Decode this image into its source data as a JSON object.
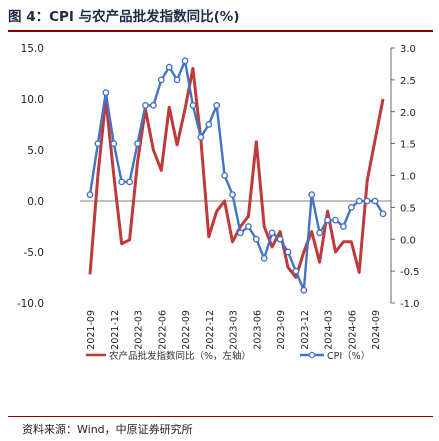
{
  "title": "图 4：CPI 与农产品批发指数同比(%)",
  "source": "资料来源：Wind，中原证券研究所",
  "colors": {
    "agri": "#c0393b",
    "cpi": "#4472c4",
    "accent": "#8b0000"
  },
  "chart_data": {
    "type": "line",
    "x_ticks": [
      "2021-09",
      "2021-12",
      "2022-03",
      "2022-06",
      "2022-09",
      "2022-12",
      "2023-03",
      "2023-06",
      "2023-09",
      "2023-12",
      "2024-03",
      "2024-06",
      "2024-09"
    ],
    "x_tick_index": [
      0,
      3,
      6,
      9,
      12,
      15,
      18,
      21,
      24,
      27,
      30,
      33,
      36
    ],
    "left_axis": {
      "ylim": [
        -10,
        15
      ],
      "ticks": [
        "15.0",
        "10.0",
        "5.0",
        "0.0",
        "-5.0",
        "-10.0"
      ],
      "tick_values": [
        15,
        10,
        5,
        0,
        -5,
        -10
      ]
    },
    "right_axis": {
      "ylim": [
        -1.0,
        3.0
      ],
      "ticks": [
        "3.0",
        "2.5",
        "2.0",
        "1.5",
        "1.0",
        "0.5",
        "0.0",
        "-0.5",
        "-1.0"
      ],
      "tick_values": [
        3,
        2.5,
        2,
        1.5,
        1,
        0.5,
        0,
        -0.5,
        -1
      ]
    },
    "series": [
      {
        "name": "农产品批发指数同比（%，左轴）",
        "axis": "left",
        "color": "#c0393b",
        "marker": "none",
        "values": [
          -7.2,
          2.5,
          10.0,
          2.5,
          -4.2,
          -3.8,
          3.8,
          9.0,
          5.0,
          3.0,
          9.2,
          5.5,
          9.0,
          13.0,
          6.0,
          -3.5,
          -1.0,
          0.0,
          -4.0,
          -2.5,
          -1.5,
          5.8,
          -2.5,
          -4.5,
          -3.0,
          -6.5,
          -7.5,
          -5.0,
          -3.0,
          -6.0,
          -1.0,
          -5.0,
          -4.0,
          -4.0,
          -7.0,
          2.0,
          6.0,
          10.0
        ]
      },
      {
        "name": "CPI（%）",
        "axis": "right",
        "color": "#4472c4",
        "marker": "o",
        "values": [
          0.7,
          1.5,
          2.3,
          1.5,
          0.9,
          0.9,
          1.5,
          2.1,
          2.1,
          2.5,
          2.7,
          2.5,
          2.8,
          2.1,
          1.6,
          1.8,
          2.1,
          1.0,
          0.7,
          0.1,
          0.2,
          0.0,
          -0.3,
          0.1,
          0.0,
          -0.2,
          -0.5,
          -0.8,
          0.7,
          0.1,
          0.3,
          0.3,
          0.2,
          0.5,
          0.6,
          0.6,
          0.6,
          0.4
        ]
      }
    ],
    "legend_position": "bottom",
    "grid": false
  }
}
